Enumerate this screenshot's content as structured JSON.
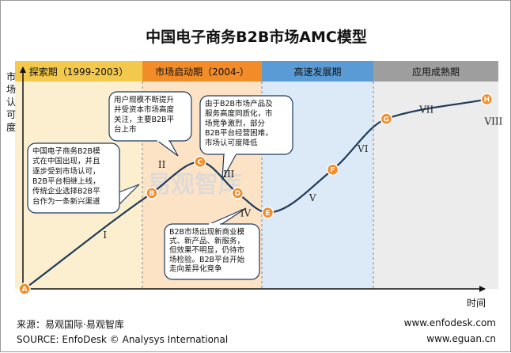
{
  "chart_data": {
    "type": "line",
    "title": "中国电子商务B2B市场AMC模型",
    "ylabel": "市场认可度",
    "xlabel": "时间",
    "phases": [
      {
        "label": "探索期（1999-2003）",
        "color": "#f2c94c",
        "bg": "#fcefcf",
        "text_color": "#111111"
      },
      {
        "label": "市场启动期（2004-）",
        "color": "#f28c28",
        "bg": "#fde3c6",
        "text_color": "#111111"
      },
      {
        "label": "高速发展期",
        "color": "#5b9bd5",
        "bg": "#dce9f6",
        "text_color": "#111111"
      },
      {
        "label": "应用成熟期",
        "color": "#9e9e9e",
        "bg": "#ececec",
        "text_color": "#111111"
      }
    ],
    "points": [
      {
        "label": "A",
        "t": 0.0,
        "v": 0.0
      },
      {
        "label": "B",
        "t": 1.9,
        "v": 0.49
      },
      {
        "label": "C",
        "t": 2.62,
        "v": 0.65
      },
      {
        "label": "D",
        "t": 3.18,
        "v": 0.49
      },
      {
        "label": "E",
        "t": 3.63,
        "v": 0.39
      },
      {
        "label": "F",
        "t": 4.6,
        "v": 0.61
      },
      {
        "label": "G",
        "t": 5.4,
        "v": 0.87
      },
      {
        "label": "H",
        "t": 6.9,
        "v": 0.97
      }
    ],
    "stage_labels": [
      {
        "label": "I",
        "t": 1.2,
        "v": 0.26
      },
      {
        "label": "II",
        "t": 2.05,
        "v": 0.62
      },
      {
        "label": "III",
        "t": 3.05,
        "v": 0.57
      },
      {
        "label": "IV",
        "t": 3.3,
        "v": 0.37
      },
      {
        "label": "V",
        "t": 4.3,
        "v": 0.45
      },
      {
        "label": "VI",
        "t": 5.05,
        "v": 0.7
      },
      {
        "label": "VII",
        "t": 6.0,
        "v": 0.9
      },
      {
        "label": "VIII",
        "t": 7.0,
        "v": 0.84
      }
    ],
    "notes": [
      {
        "lines": [
          "中国电子商务B2B模",
          "式在中国出现，并且",
          "逐步受到市场认可，",
          "B2B平台相继上线，",
          "传统企业选择B2B平",
          "台作为一条新兴渠道"
        ]
      },
      {
        "lines": [
          "用户规模不断提升",
          "并受资本市场高度",
          "关注，主要B2B平",
          "台上市"
        ]
      },
      {
        "lines": [
          "由于B2B市场产品及",
          "服务高度同质化，市",
          "场竞争激烈，部分",
          "B2B平台经营困难，",
          "市场认可度降低"
        ]
      },
      {
        "lines": [
          "B2B市场出现新商业模",
          "式、新产品、新服务，",
          "但效果不明显，仍待市",
          "场检验。B2B平台开始",
          "走向差异化竞争"
        ]
      }
    ],
    "colors": {
      "point": "#f28c28",
      "curve": "#1f3a5a",
      "axis": "#111111"
    }
  },
  "watermark": "易观智库",
  "footer": {
    "source_cn": "来源：易观国际·易观智库",
    "source_en": "SOURCE: EnfoDesk © Analysys International",
    "url1": "www.enfodesk.com",
    "url2": "www.eguan.cn"
  }
}
